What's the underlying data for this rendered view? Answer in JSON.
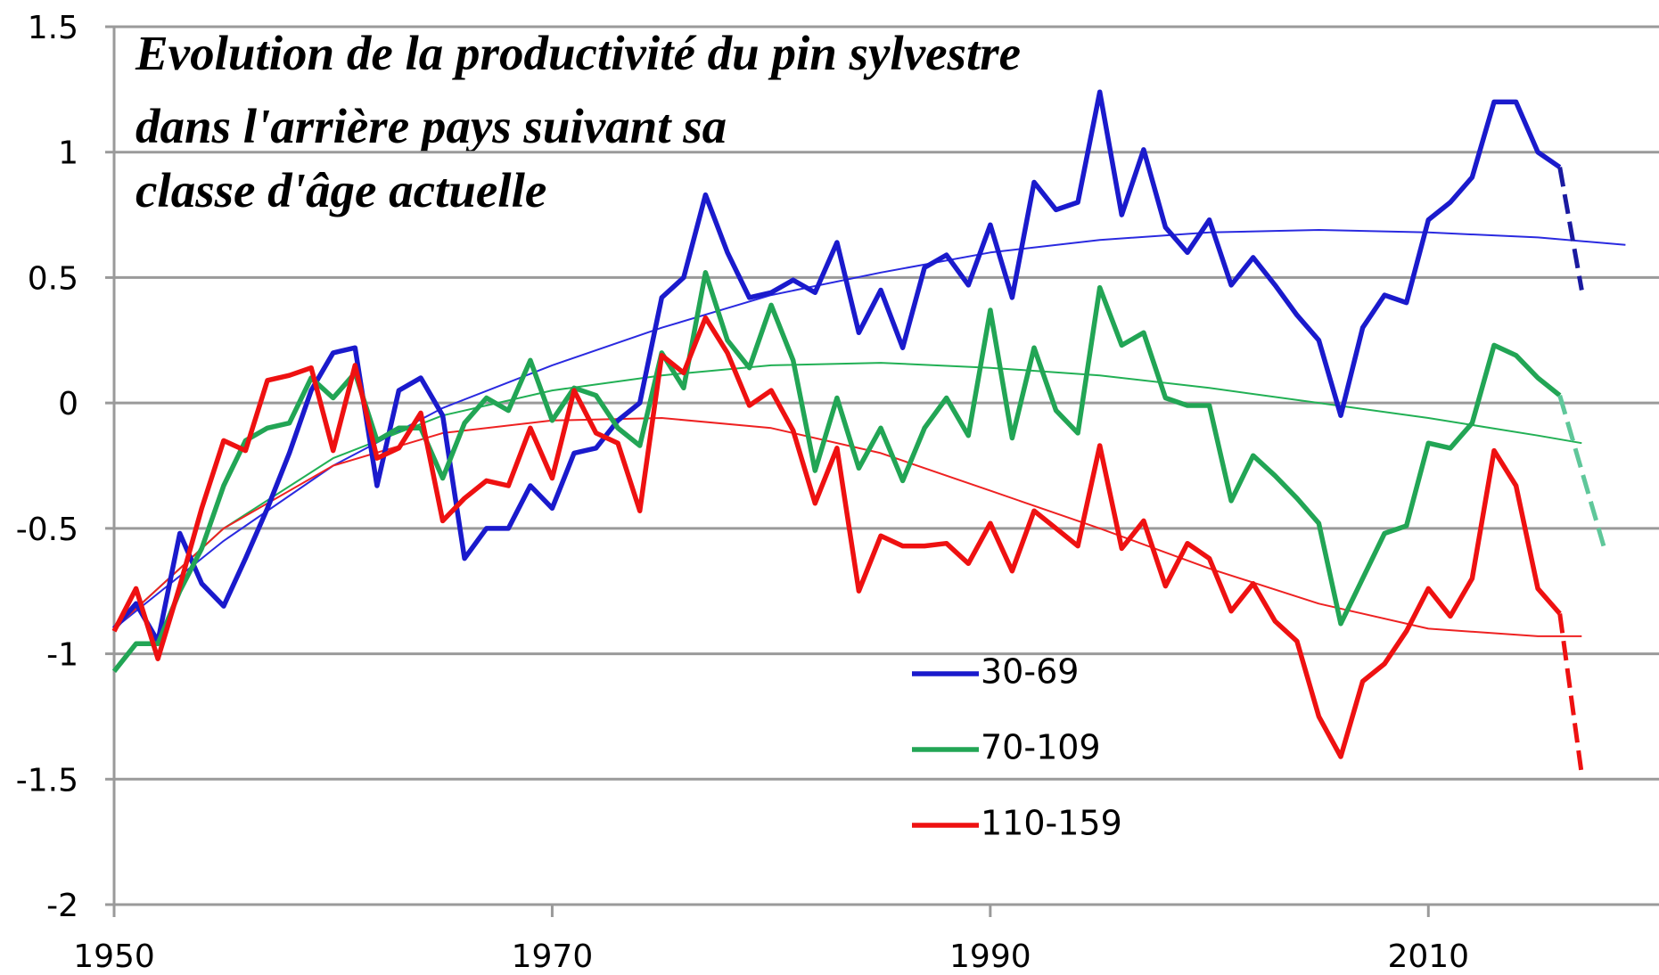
{
  "chart_data": {
    "type": "line",
    "title": [
      "Evolution  de la productivité du pin sylvestre",
      "dans l'arrière pays suivant sa",
      "classe d'âge actuelle"
    ],
    "x": [
      1950,
      1951,
      1952,
      1953,
      1954,
      1955,
      1956,
      1957,
      1958,
      1959,
      1960,
      1961,
      1962,
      1963,
      1964,
      1965,
      1966,
      1967,
      1968,
      1969,
      1970,
      1971,
      1972,
      1973,
      1974,
      1975,
      1976,
      1977,
      1978,
      1979,
      1980,
      1981,
      1982,
      1983,
      1984,
      1985,
      1986,
      1987,
      1988,
      1989,
      1990,
      1991,
      1992,
      1993,
      1994,
      1995,
      1996,
      1997,
      1998,
      1999,
      2000,
      2001,
      2002,
      2003,
      2004,
      2005,
      2006,
      2007,
      2008,
      2009,
      2010,
      2011,
      2012,
      2013,
      2014,
      2015,
      2016
    ],
    "series": [
      {
        "name": "30-69",
        "color": "#1a1acc",
        "values": [
          -0.9,
          -0.8,
          -0.95,
          -0.52,
          -0.72,
          -0.81,
          -0.62,
          -0.42,
          -0.2,
          0.05,
          0.2,
          0.22,
          -0.33,
          0.05,
          0.1,
          -0.05,
          -0.62,
          -0.5,
          -0.5,
          -0.33,
          -0.42,
          -0.2,
          -0.18,
          -0.07,
          0.0,
          0.42,
          0.5,
          0.83,
          0.6,
          0.42,
          0.44,
          0.49,
          0.44,
          0.64,
          0.28,
          0.45,
          0.22,
          0.54,
          0.59,
          0.47,
          0.71,
          0.42,
          0.88,
          0.77,
          0.8,
          1.24,
          0.75,
          1.01,
          0.7,
          0.6,
          0.73,
          0.47,
          0.58,
          0.47,
          0.35,
          0.25,
          -0.05,
          0.3,
          0.43,
          0.4,
          0.73,
          0.8,
          0.9,
          1.2,
          1.2,
          1.0,
          0.94
        ]
      },
      {
        "name": "70-109",
        "color": "#22a555",
        "values": [
          -1.07,
          -0.96,
          -0.96,
          -0.75,
          -0.58,
          -0.33,
          -0.15,
          -0.1,
          -0.08,
          0.1,
          0.02,
          0.12,
          -0.15,
          -0.1,
          -0.1,
          -0.3,
          -0.08,
          0.02,
          -0.03,
          0.17,
          -0.07,
          0.06,
          0.03,
          -0.1,
          -0.17,
          0.2,
          0.06,
          0.52,
          0.25,
          0.14,
          0.39,
          0.17,
          -0.27,
          0.02,
          -0.26,
          -0.1,
          -0.31,
          -0.1,
          0.02,
          -0.13,
          0.37,
          -0.14,
          0.22,
          -0.03,
          -0.12,
          0.46,
          0.23,
          0.28,
          0.02,
          -0.01,
          -0.01,
          -0.39,
          -0.21,
          -0.29,
          -0.38,
          -0.48,
          -0.88,
          -0.7,
          -0.52,
          -0.49,
          -0.16,
          -0.18,
          -0.08,
          0.23,
          0.19,
          0.1,
          0.03
        ]
      },
      {
        "name": "110-159",
        "color": "#ee1111",
        "values": [
          -0.91,
          -0.74,
          -1.02,
          -0.73,
          -0.42,
          -0.15,
          -0.19,
          0.09,
          0.11,
          0.14,
          -0.19,
          0.15,
          -0.22,
          -0.18,
          -0.04,
          -0.47,
          -0.38,
          -0.31,
          -0.33,
          -0.1,
          -0.3,
          0.05,
          -0.12,
          -0.16,
          -0.43,
          0.19,
          0.12,
          0.34,
          0.2,
          -0.01,
          0.05,
          -0.11,
          -0.4,
          -0.18,
          -0.75,
          -0.53,
          -0.57,
          -0.57,
          -0.56,
          -0.64,
          -0.48,
          -0.67,
          -0.43,
          -0.5,
          -0.57,
          -0.17,
          -0.58,
          -0.47,
          -0.73,
          -0.56,
          -0.62,
          -0.83,
          -0.72,
          -0.87,
          -0.95,
          -1.25,
          -1.41,
          -1.11,
          -1.04,
          -0.91,
          -0.74,
          -0.85,
          -0.7,
          -0.19,
          -0.33,
          -0.74,
          -0.84
        ]
      }
    ],
    "trends": [
      {
        "color": "#2a2ae0",
        "x": [
          1950,
          1955,
          1960,
          1965,
          1970,
          1975,
          1980,
          1985,
          1990,
          1995,
          2000,
          2005,
          2010,
          2015,
          2019
        ],
        "values": [
          -0.9,
          -0.55,
          -0.25,
          -0.02,
          0.15,
          0.3,
          0.43,
          0.52,
          0.6,
          0.65,
          0.68,
          0.69,
          0.68,
          0.66,
          0.63
        ]
      },
      {
        "color": "#22b055",
        "x": [
          1950,
          1955,
          1960,
          1965,
          1970,
          1975,
          1980,
          1985,
          1990,
          1995,
          2000,
          2005,
          2010,
          2015,
          2017
        ],
        "values": [
          -0.9,
          -0.5,
          -0.22,
          -0.05,
          0.05,
          0.11,
          0.15,
          0.16,
          0.14,
          0.11,
          0.06,
          0.0,
          -0.06,
          -0.13,
          -0.16
        ]
      },
      {
        "color": "#ee2222",
        "x": [
          1950,
          1955,
          1960,
          1965,
          1970,
          1975,
          1980,
          1985,
          1990,
          1995,
          2000,
          2005,
          2010,
          2015,
          2017
        ],
        "values": [
          -0.9,
          -0.5,
          -0.25,
          -0.12,
          -0.07,
          -0.06,
          -0.1,
          -0.2,
          -0.35,
          -0.5,
          -0.66,
          -0.8,
          -0.9,
          -0.93,
          -0.93
        ]
      }
    ],
    "projections": [
      {
        "color": "#1a1aa0",
        "x": [
          2016,
          2017
        ],
        "values": [
          0.94,
          0.45
        ]
      },
      {
        "color": "#5fc79a",
        "x": [
          2016,
          2018
        ],
        "values": [
          0.03,
          -0.57
        ]
      },
      {
        "color": "#ee1111",
        "x": [
          2016,
          2017
        ],
        "values": [
          -0.84,
          -1.48
        ]
      }
    ],
    "xlim": [
      1950,
      2020
    ],
    "ylim": [
      -2,
      1.5
    ],
    "xticks": [
      1950,
      1970,
      1990,
      2010
    ],
    "yticks": [
      1.5,
      1,
      0.5,
      0,
      -0.5,
      -1,
      -1.5,
      -2
    ],
    "grid": true
  }
}
